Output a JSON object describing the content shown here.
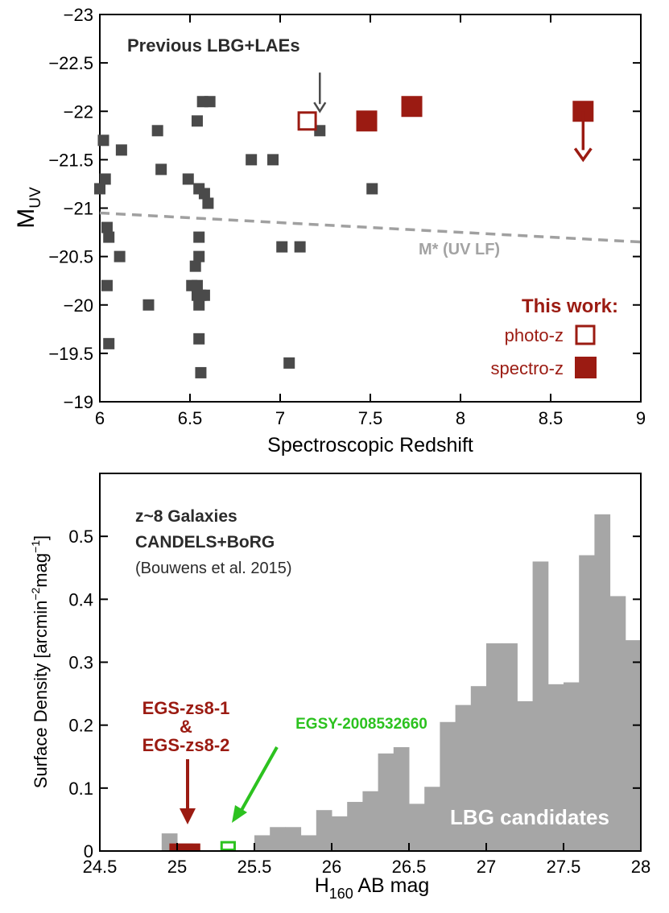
{
  "chart_data": [
    {
      "type": "scatter",
      "xlabel": "Spectroscopic Redshift",
      "ylabel_main": "M",
      "ylabel_sub": "UV",
      "xlim": [
        6,
        9
      ],
      "ylim": [
        -19,
        -23
      ],
      "y_inverted": true,
      "xticks": [
        6,
        6.5,
        7,
        7.5,
        8,
        8.5,
        9
      ],
      "xtick_labels": [
        "6",
        "6.5",
        "7",
        "7.5",
        "8",
        "8.5",
        "9"
      ],
      "yticks": [
        -19,
        -19.5,
        -20,
        -20.5,
        -21,
        -21.5,
        -22,
        -22.5,
        -23
      ],
      "ytick_labels": [
        "−19",
        "−19.5",
        "−20",
        "−20.5",
        "−21",
        "−21.5",
        "−22",
        "−22.5",
        "−23"
      ],
      "annotations": {
        "previous": "Previous LBG+LAEs",
        "this_work": "This work:",
        "photo_z": "photo-z",
        "spectro_z": "spectro-z",
        "mstar": "M* (UV LF)"
      },
      "colors": {
        "previous": "#4a4a4a",
        "this_work": "#9b1b12",
        "mstar_line": "#a0a0a0"
      },
      "series": [
        {
          "name": "Previous LBG+LAEs",
          "marker": "filled-square",
          "points": [
            [
              6.0,
              -21.2
            ],
            [
              6.02,
              -21.7
            ],
            [
              6.03,
              -21.3
            ],
            [
              6.04,
              -20.8
            ],
            [
              6.05,
              -20.7
            ],
            [
              6.04,
              -20.2
            ],
            [
              6.05,
              -19.6
            ],
            [
              6.12,
              -21.6
            ],
            [
              6.11,
              -20.5
            ],
            [
              6.27,
              -20.0
            ],
            [
              6.32,
              -21.8
            ],
            [
              6.34,
              -21.4
            ],
            [
              6.49,
              -21.3
            ],
            [
              6.51,
              -20.2
            ],
            [
              6.54,
              -20.2
            ],
            [
              6.53,
              -20.4
            ],
            [
              6.54,
              -21.9
            ],
            [
              6.55,
              -21.2
            ],
            [
              6.55,
              -20.7
            ],
            [
              6.55,
              -20.5
            ],
            [
              6.54,
              -20.1
            ],
            [
              6.55,
              -20.0
            ],
            [
              6.56,
              -20.1
            ],
            [
              6.55,
              -19.65
            ],
            [
              6.56,
              -19.3
            ],
            [
              6.57,
              -22.1
            ],
            [
              6.58,
              -21.15
            ],
            [
              6.6,
              -21.05
            ],
            [
              6.61,
              -22.1
            ],
            [
              6.58,
              -20.1
            ],
            [
              6.84,
              -21.5
            ],
            [
              6.96,
              -21.5
            ],
            [
              7.01,
              -20.6
            ],
            [
              7.05,
              -19.4
            ],
            [
              7.11,
              -20.6
            ],
            [
              7.22,
              -21.8
            ],
            [
              7.51,
              -21.2
            ]
          ]
        },
        {
          "name": "photo-z",
          "marker": "open-square",
          "points": [
            [
              7.15,
              -21.9
            ]
          ]
        },
        {
          "name": "spectro-z",
          "marker": "filled-square",
          "points": [
            [
              7.48,
              -21.9
            ],
            [
              7.73,
              -22.05
            ],
            [
              8.68,
              -22.0
            ]
          ]
        }
      ],
      "upper_limit_arrows": [
        {
          "from": [
            7.22,
            -22.4
          ],
          "to": [
            7.22,
            -22.0
          ],
          "color": "#4a4a4a"
        },
        {
          "from": [
            8.68,
            -22.0
          ],
          "to": [
            8.68,
            -21.5
          ],
          "color": "#9b1b12"
        }
      ],
      "reference_line": {
        "name": "M* (UV LF)",
        "style": "dashed",
        "from": [
          6,
          -20.95
        ],
        "to": [
          9,
          -20.65
        ]
      }
    },
    {
      "type": "bar",
      "xlabel_main": "H",
      "xlabel_sub": "160",
      "xlabel_rest": " AB mag",
      "ylabel": "Surface Density [arcmin",
      "ylabel_sup1": "−2",
      "ylabel_mid": "mag",
      "ylabel_sup2": "−1",
      "ylabel_end": "]",
      "xlim": [
        24.5,
        28
      ],
      "ylim": [
        0,
        0.6
      ],
      "xticks": [
        24.5,
        25,
        25.5,
        26,
        26.5,
        27,
        27.5,
        28
      ],
      "xtick_labels": [
        "24.5",
        "25",
        "25.5",
        "26",
        "26.5",
        "27",
        "27.5",
        "28"
      ],
      "yticks": [
        0,
        0.1,
        0.2,
        0.3,
        0.4,
        0.5
      ],
      "ytick_labels": [
        "0",
        "0.1",
        "0.2",
        "0.3",
        "0.4",
        "0.5"
      ],
      "annotations": {
        "title1": "z~8 Galaxies",
        "title2": "CANDELS+BoRG",
        "citation": "(Bouwens et al. 2015)",
        "egs1": "EGS-zs8-1",
        "amp": "&",
        "egs2": "EGS-zs8-2",
        "egsy": "EGSY-2008532660",
        "lbg": "LBG candidates"
      },
      "colors": {
        "histogram": "#a6a6a6",
        "egs": "#9b1b12",
        "egsy": "#2cc21f"
      },
      "bin_width": 0.1,
      "bins": [
        [
          24.9,
          0.028
        ],
        [
          25.0,
          0.012
        ],
        [
          25.5,
          0.025
        ],
        [
          25.6,
          0.038
        ],
        [
          25.7,
          0.038
        ],
        [
          25.8,
          0.025
        ],
        [
          25.9,
          0.065
        ],
        [
          26.0,
          0.055
        ],
        [
          26.1,
          0.078
        ],
        [
          26.2,
          0.095
        ],
        [
          26.3,
          0.155
        ],
        [
          26.4,
          0.165
        ],
        [
          26.5,
          0.075
        ],
        [
          26.6,
          0.102
        ],
        [
          26.7,
          0.205
        ],
        [
          26.8,
          0.232
        ],
        [
          26.9,
          0.262
        ],
        [
          27.0,
          0.33
        ],
        [
          27.1,
          0.33
        ],
        [
          27.2,
          0.238
        ],
        [
          27.3,
          0.46
        ],
        [
          27.4,
          0.265
        ],
        [
          27.5,
          0.268
        ],
        [
          27.6,
          0.47
        ],
        [
          27.7,
          0.535
        ],
        [
          27.8,
          0.405
        ],
        [
          27.9,
          0.335
        ]
      ],
      "markers": [
        {
          "name": "EGS-zs8-1 & EGS-zs8-2",
          "x": [
            24.95,
            25.15
          ],
          "value": 0.012,
          "filled": true
        },
        {
          "name": "EGSY-2008532660",
          "x": [
            25.28,
            25.38
          ],
          "value": 0.012,
          "filled": false
        }
      ]
    }
  ]
}
